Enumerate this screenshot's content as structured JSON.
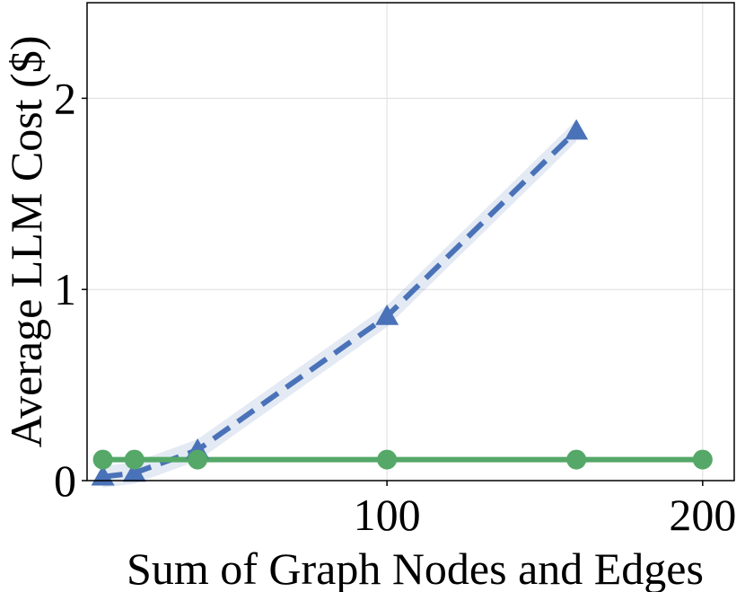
{
  "chart_data": {
    "type": "line",
    "title": "",
    "xlabel": "Sum of Graph Nodes and Edges",
    "ylabel": "Average LLM Cost ($)",
    "xlim": [
      5,
      210
    ],
    "ylim": [
      0,
      2.5
    ],
    "xticks": [
      100,
      200
    ],
    "yticks": [
      0,
      1,
      2
    ],
    "grid": true,
    "series": [
      {
        "color": "#4a72b8",
        "marker": "triangle",
        "linestyle": "dashed",
        "band": true,
        "x": [
          10,
          20,
          40,
          100,
          160
        ],
        "y": [
          0.02,
          0.04,
          0.16,
          0.86,
          1.83
        ]
      },
      {
        "color": "#55a868",
        "marker": "circle",
        "linestyle": "solid",
        "band": false,
        "x": [
          10,
          20,
          40,
          100,
          160,
          200
        ],
        "y": [
          0.11,
          0.11,
          0.11,
          0.11,
          0.11,
          0.11
        ]
      }
    ]
  }
}
